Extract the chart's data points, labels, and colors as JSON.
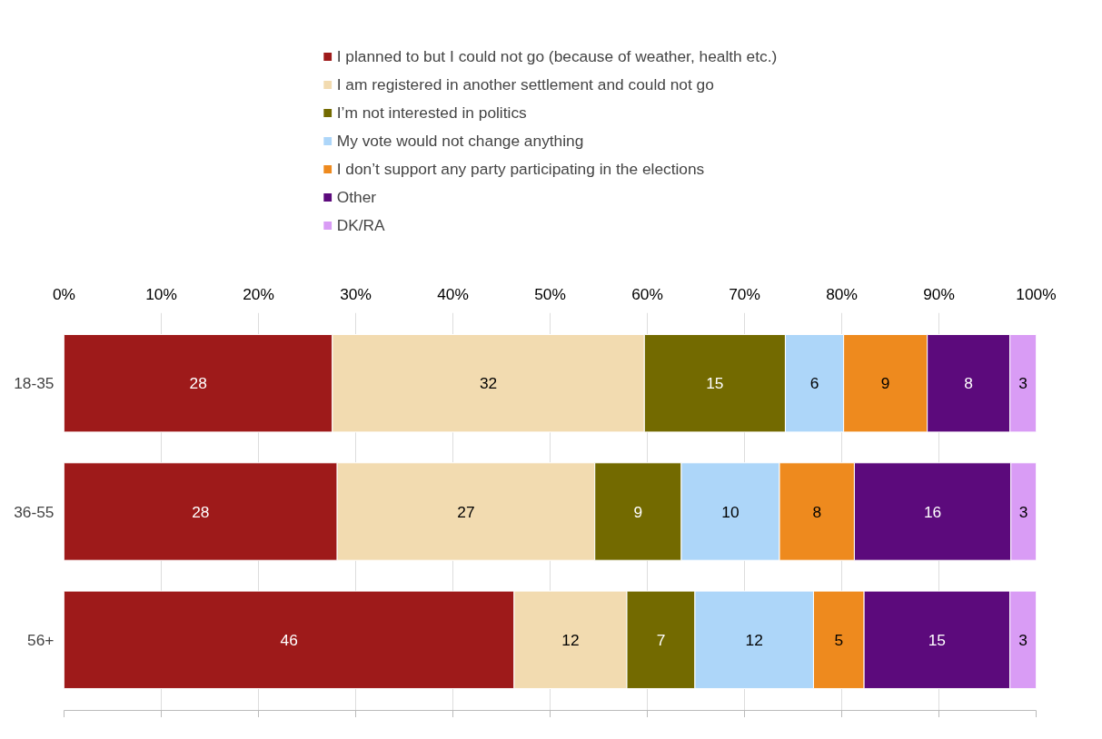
{
  "chart_data": {
    "type": "bar",
    "orientation": "horizontal",
    "stacked": true,
    "categories": [
      "18-35",
      "36-55",
      "56+"
    ],
    "xlim": [
      0,
      100
    ],
    "xticks": [
      {
        "value": 0,
        "label": "0%"
      },
      {
        "value": 10,
        "label": "10%"
      },
      {
        "value": 20,
        "label": "20%"
      },
      {
        "value": 30,
        "label": "30%"
      },
      {
        "value": 40,
        "label": "40%"
      },
      {
        "value": 50,
        "label": "50%"
      },
      {
        "value": 60,
        "label": "60%"
      },
      {
        "value": 70,
        "label": "70%"
      },
      {
        "value": 80,
        "label": "80%"
      },
      {
        "value": 90,
        "label": "90%"
      },
      {
        "value": 100,
        "label": "100%"
      }
    ],
    "grid": "x",
    "legend": "top",
    "series": [
      {
        "name": "I planned to but I could not go (because of weather, health etc.)",
        "color": "#9e1a1a",
        "values": [
          27.6,
          28.1,
          46.3
        ],
        "value_labels": [
          "28",
          "28",
          "46"
        ]
      },
      {
        "name": "I am registered in another settlement and could not go",
        "color": "#f2dbb0",
        "values": [
          32.1,
          26.5,
          11.6
        ],
        "value_labels": [
          "32",
          "27",
          "12"
        ]
      },
      {
        "name": "I’m not interested in politics",
        "color": "#736a00",
        "values": [
          14.5,
          8.9,
          7.0
        ],
        "value_labels": [
          "15",
          "9",
          "7"
        ]
      },
      {
        "name": "My vote would not change anything",
        "color": "#add6f9",
        "values": [
          6.0,
          10.1,
          12.2
        ],
        "value_labels": [
          "6",
          "10",
          "12"
        ]
      },
      {
        "name": "I don’t support any party participating in the elections",
        "color": "#ee8a1e",
        "values": [
          8.6,
          7.7,
          5.2
        ],
        "value_labels": [
          "9",
          "8",
          "5"
        ]
      },
      {
        "name": "Other",
        "color": "#5c0a7c",
        "values": [
          8.5,
          16.1,
          15.0
        ],
        "value_labels": [
          "8",
          "16",
          "15"
        ]
      },
      {
        "name": "DK/RA",
        "color": "#d99cf5",
        "values": [
          2.7,
          2.6,
          2.7
        ],
        "value_labels": [
          "3",
          "3",
          "3"
        ]
      }
    ]
  }
}
